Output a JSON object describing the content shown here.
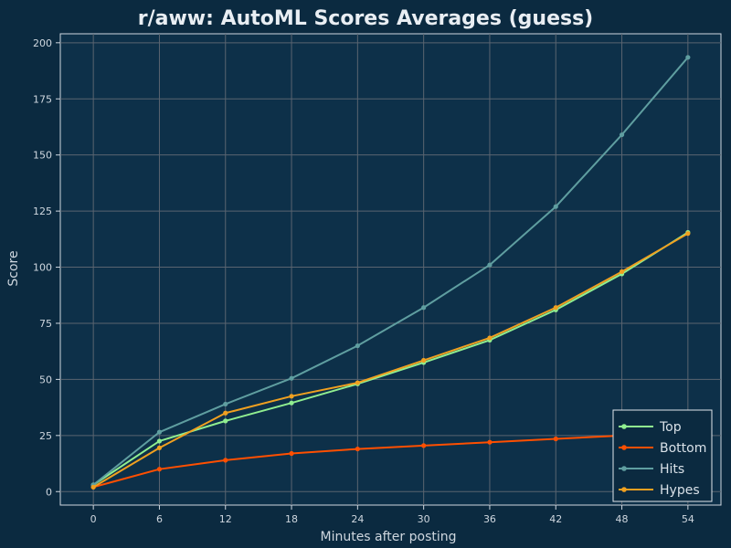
{
  "chart_data": {
    "type": "line",
    "title": "r/aww: AutoML Scores Averages (guess)",
    "xlabel": "Minutes after posting",
    "ylabel": "Score",
    "x": [
      0,
      6,
      12,
      18,
      24,
      30,
      36,
      42,
      48,
      54
    ],
    "xlim": [
      -3,
      57
    ],
    "ylim": [
      -6,
      204
    ],
    "xticks": [
      "0",
      "6",
      "12",
      "18",
      "24",
      "30",
      "36",
      "42",
      "48",
      "54"
    ],
    "yticks": [
      "0",
      "25",
      "50",
      "75",
      "100",
      "125",
      "150",
      "175",
      "200"
    ],
    "grid": true,
    "legend_position": "bottom-right",
    "series": [
      {
        "name": "Top",
        "color": "#90ee90",
        "values": [
          3,
          22.5,
          31.5,
          39.5,
          48,
          57.5,
          67.5,
          81,
          97,
          115.5
        ]
      },
      {
        "name": "Bottom",
        "color": "#ff4f00",
        "values": [
          2,
          10,
          14,
          17,
          19,
          20.5,
          22,
          23.5,
          25,
          26
        ]
      },
      {
        "name": "Hits",
        "color": "#5f9ea0",
        "values": [
          3,
          26.5,
          39,
          50.5,
          65,
          82,
          101,
          127,
          159,
          193.5
        ]
      },
      {
        "name": "Hypes",
        "color": "#f0a020",
        "values": [
          2,
          19.5,
          35,
          42.5,
          48.5,
          58.5,
          68.5,
          82,
          98,
          115
        ]
      }
    ]
  }
}
